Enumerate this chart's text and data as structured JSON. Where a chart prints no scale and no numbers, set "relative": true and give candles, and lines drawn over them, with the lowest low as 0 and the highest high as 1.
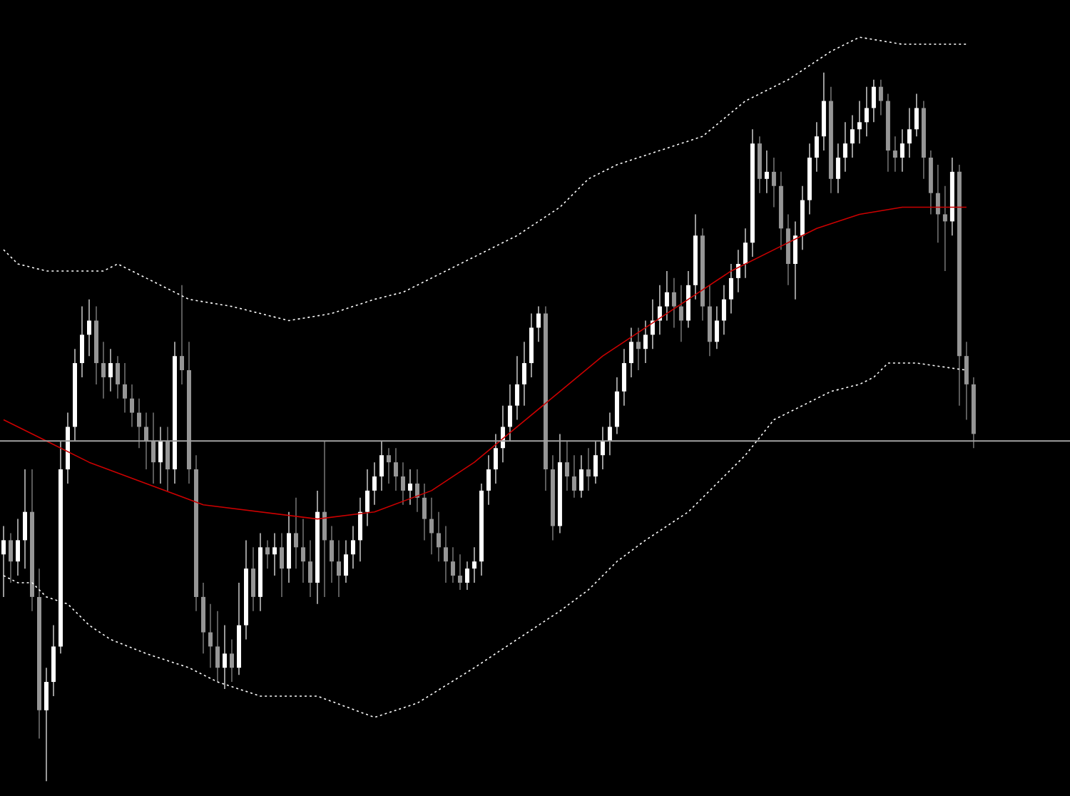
{
  "chart_data": {
    "type": "candlestick",
    "relative": true,
    "categories": [
      null,
      null,
      null,
      null,
      null,
      null,
      null,
      null,
      null,
      null,
      null,
      null,
      null,
      null,
      null,
      null,
      null,
      null,
      null,
      null,
      null,
      null,
      null,
      null,
      null,
      null,
      null,
      null,
      null,
      null,
      null,
      null,
      null,
      null,
      null,
      null,
      null,
      null,
      null,
      null,
      null,
      null,
      null,
      null,
      null,
      null,
      null,
      null,
      null,
      null,
      null,
      null,
      null,
      null,
      null,
      null,
      null,
      null,
      null,
      null,
      null,
      null,
      null,
      null,
      null,
      null,
      null,
      null,
      null,
      null,
      null,
      null,
      null,
      null,
      null,
      null,
      null,
      null,
      null,
      null,
      null,
      null,
      null,
      null,
      null,
      null,
      null,
      null,
      null,
      null,
      null,
      null,
      null,
      null,
      null,
      null,
      null,
      null,
      null,
      null,
      null,
      null,
      null,
      null,
      null,
      null,
      null,
      null,
      null,
      null,
      null,
      null,
      null,
      null,
      null,
      null,
      null,
      null,
      null,
      null,
      null,
      null,
      null,
      null,
      null,
      null,
      null,
      null,
      null,
      null,
      null,
      null,
      null,
      null,
      null,
      null,
      null
    ],
    "ohlc": [
      [
        0.32,
        0.36,
        0.26,
        0.34
      ],
      [
        0.34,
        0.35,
        0.28,
        0.31
      ],
      [
        0.31,
        0.37,
        0.29,
        0.34
      ],
      [
        0.34,
        0.44,
        0.3,
        0.38
      ],
      [
        0.38,
        0.44,
        0.24,
        0.26
      ],
      [
        0.26,
        0.3,
        0.06,
        0.1
      ],
      [
        0.1,
        0.16,
        0,
        0.14
      ],
      [
        0.14,
        0.22,
        0.12,
        0.19
      ],
      [
        0.19,
        0.48,
        0.18,
        0.44
      ],
      [
        0.44,
        0.52,
        0.42,
        0.5
      ],
      [
        0.5,
        0.61,
        0.48,
        0.59
      ],
      [
        0.59,
        0.67,
        0.57,
        0.63
      ],
      [
        0.63,
        0.68,
        0.6,
        0.65
      ],
      [
        0.65,
        0.67,
        0.56,
        0.59
      ],
      [
        0.59,
        0.62,
        0.54,
        0.57
      ],
      [
        0.57,
        0.61,
        0.55,
        0.59
      ],
      [
        0.59,
        0.6,
        0.54,
        0.56
      ],
      [
        0.56,
        0.59,
        0.52,
        0.54
      ],
      [
        0.54,
        0.56,
        0.5,
        0.52
      ],
      [
        0.52,
        0.54,
        0.47,
        0.5
      ],
      [
        0.5,
        0.52,
        0.44,
        0.48
      ],
      [
        0.48,
        0.52,
        0.42,
        0.45
      ],
      [
        0.45,
        0.5,
        0.42,
        0.48
      ],
      [
        0.48,
        0.5,
        0.41,
        0.44
      ],
      [
        0.44,
        0.62,
        0.42,
        0.6
      ],
      [
        0.6,
        0.7,
        0.56,
        0.58
      ],
      [
        0.58,
        0.62,
        0.42,
        0.44
      ],
      [
        0.44,
        0.46,
        0.24,
        0.26
      ],
      [
        0.26,
        0.28,
        0.18,
        0.21
      ],
      [
        0.21,
        0.25,
        0.16,
        0.19
      ],
      [
        0.19,
        0.24,
        0.14,
        0.16
      ],
      [
        0.16,
        0.22,
        0.13,
        0.18
      ],
      [
        0.18,
        0.2,
        0.14,
        0.16
      ],
      [
        0.16,
        0.28,
        0.15,
        0.22
      ],
      [
        0.22,
        0.34,
        0.2,
        0.3
      ],
      [
        0.3,
        0.33,
        0.24,
        0.26
      ],
      [
        0.26,
        0.35,
        0.24,
        0.33
      ],
      [
        0.33,
        0.34,
        0.3,
        0.32
      ],
      [
        0.32,
        0.35,
        0.29,
        0.33
      ],
      [
        0.33,
        0.35,
        0.26,
        0.3
      ],
      [
        0.3,
        0.38,
        0.28,
        0.35
      ],
      [
        0.35,
        0.4,
        0.3,
        0.33
      ],
      [
        0.33,
        0.37,
        0.28,
        0.31
      ],
      [
        0.31,
        0.34,
        0.26,
        0.28
      ],
      [
        0.28,
        0.41,
        0.25,
        0.38
      ],
      [
        0.38,
        0.48,
        0.26,
        0.34
      ],
      [
        0.34,
        0.36,
        0.28,
        0.31
      ],
      [
        0.31,
        0.34,
        0.26,
        0.29
      ],
      [
        0.29,
        0.34,
        0.28,
        0.32
      ],
      [
        0.32,
        0.36,
        0.3,
        0.34
      ],
      [
        0.34,
        0.4,
        0.31,
        0.38
      ],
      [
        0.38,
        0.44,
        0.36,
        0.41
      ],
      [
        0.41,
        0.45,
        0.39,
        0.43
      ],
      [
        0.43,
        0.48,
        0.41,
        0.46
      ],
      [
        0.46,
        0.47,
        0.42,
        0.45
      ],
      [
        0.45,
        0.47,
        0.41,
        0.43
      ],
      [
        0.43,
        0.45,
        0.39,
        0.41
      ],
      [
        0.41,
        0.44,
        0.39,
        0.42
      ],
      [
        0.42,
        0.44,
        0.38,
        0.4
      ],
      [
        0.4,
        0.42,
        0.34,
        0.37
      ],
      [
        0.37,
        0.4,
        0.32,
        0.35
      ],
      [
        0.35,
        0.38,
        0.31,
        0.33
      ],
      [
        0.33,
        0.36,
        0.28,
        0.31
      ],
      [
        0.31,
        0.33,
        0.28,
        0.29
      ],
      [
        0.29,
        0.32,
        0.27,
        0.28
      ],
      [
        0.28,
        0.31,
        0.27,
        0.3
      ],
      [
        0.3,
        0.33,
        0.28,
        0.31
      ],
      [
        0.31,
        0.42,
        0.29,
        0.41
      ],
      [
        0.41,
        0.46,
        0.39,
        0.44
      ],
      [
        0.44,
        0.49,
        0.42,
        0.47
      ],
      [
        0.47,
        0.53,
        0.45,
        0.5
      ],
      [
        0.5,
        0.56,
        0.48,
        0.53
      ],
      [
        0.53,
        0.6,
        0.51,
        0.56
      ],
      [
        0.56,
        0.62,
        0.53,
        0.59
      ],
      [
        0.59,
        0.66,
        0.57,
        0.64
      ],
      [
        0.64,
        0.67,
        0.62,
        0.66
      ],
      [
        0.66,
        0.67,
        0.41,
        0.44
      ],
      [
        0.44,
        0.46,
        0.34,
        0.36
      ],
      [
        0.36,
        0.49,
        0.35,
        0.45
      ],
      [
        0.45,
        0.48,
        0.41,
        0.43
      ],
      [
        0.43,
        0.46,
        0.4,
        0.41
      ],
      [
        0.41,
        0.46,
        0.4,
        0.44
      ],
      [
        0.44,
        0.47,
        0.41,
        0.43
      ],
      [
        0.43,
        0.48,
        0.42,
        0.46
      ],
      [
        0.46,
        0.5,
        0.44,
        0.48
      ],
      [
        0.48,
        0.52,
        0.46,
        0.5
      ],
      [
        0.5,
        0.57,
        0.49,
        0.55
      ],
      [
        0.55,
        0.61,
        0.53,
        0.59
      ],
      [
        0.59,
        0.64,
        0.57,
        0.62
      ],
      [
        0.62,
        0.64,
        0.58,
        0.61
      ],
      [
        0.61,
        0.65,
        0.59,
        0.63
      ],
      [
        0.63,
        0.68,
        0.61,
        0.65
      ],
      [
        0.65,
        0.7,
        0.63,
        0.67
      ],
      [
        0.67,
        0.72,
        0.65,
        0.69
      ],
      [
        0.69,
        0.71,
        0.64,
        0.67
      ],
      [
        0.67,
        0.7,
        0.62,
        0.65
      ],
      [
        0.65,
        0.72,
        0.64,
        0.7
      ],
      [
        0.7,
        0.8,
        0.68,
        0.77
      ],
      [
        0.77,
        0.78,
        0.65,
        0.67
      ],
      [
        0.67,
        0.7,
        0.6,
        0.62
      ],
      [
        0.62,
        0.67,
        0.61,
        0.65
      ],
      [
        0.65,
        0.7,
        0.63,
        0.68
      ],
      [
        0.68,
        0.73,
        0.66,
        0.71
      ],
      [
        0.71,
        0.75,
        0.69,
        0.73
      ],
      [
        0.73,
        0.78,
        0.71,
        0.76
      ],
      [
        0.76,
        0.92,
        0.74,
        0.9
      ],
      [
        0.9,
        0.91,
        0.83,
        0.85
      ],
      [
        0.85,
        0.89,
        0.83,
        0.86
      ],
      [
        0.86,
        0.88,
        0.81,
        0.84
      ],
      [
        0.84,
        0.86,
        0.75,
        0.78
      ],
      [
        0.78,
        0.8,
        0.7,
        0.73
      ],
      [
        0.73,
        0.79,
        0.68,
        0.77
      ],
      [
        0.77,
        0.84,
        0.75,
        0.82
      ],
      [
        0.82,
        0.9,
        0.8,
        0.88
      ],
      [
        0.88,
        0.93,
        0.86,
        0.91
      ],
      [
        0.91,
        1,
        0.89,
        0.96
      ],
      [
        0.96,
        0.98,
        0.83,
        0.85
      ],
      [
        0.85,
        0.9,
        0.83,
        0.88
      ],
      [
        0.88,
        0.93,
        0.86,
        0.9
      ],
      [
        0.9,
        0.94,
        0.88,
        0.92
      ],
      [
        0.92,
        0.96,
        0.9,
        0.93
      ],
      [
        0.93,
        0.98,
        0.91,
        0.95
      ],
      [
        0.95,
        0.99,
        0.93,
        0.98
      ],
      [
        0.98,
        0.99,
        0.94,
        0.96
      ],
      [
        0.96,
        0.97,
        0.86,
        0.89
      ],
      [
        0.89,
        0.91,
        0.86,
        0.88
      ],
      [
        0.88,
        0.92,
        0.86,
        0.9
      ],
      [
        0.9,
        0.95,
        0.88,
        0.92
      ],
      [
        0.92,
        0.97,
        0.91,
        0.95
      ],
      [
        0.95,
        0.96,
        0.85,
        0.88
      ],
      [
        0.88,
        0.89,
        0.8,
        0.83
      ],
      [
        0.83,
        0.87,
        0.76,
        0.8
      ],
      [
        0.8,
        0.84,
        0.72,
        0.79
      ],
      [
        0.79,
        0.88,
        0.77,
        0.86
      ],
      [
        0.86,
        0.87,
        0.53,
        0.6
      ],
      [
        0.6,
        0.62,
        0.51,
        0.56
      ],
      [
        0.56,
        0.57,
        0.47,
        0.49
      ]
    ],
    "series": [
      {
        "type": "line",
        "color": "#cc0000",
        "line_style": "solid",
        "values": [
          0.51,
          null,
          null,
          null,
          null,
          null,
          0.48,
          null,
          null,
          null,
          null,
          null,
          0.45,
          null,
          null,
          null,
          null,
          null,
          null,
          null,
          0.42,
          null,
          null,
          null,
          null,
          null,
          null,
          null,
          0.39,
          null,
          null,
          null,
          null,
          null,
          null,
          null,
          0.38,
          null,
          null,
          null,
          null,
          null,
          null,
          null,
          0.37,
          null,
          null,
          null,
          null,
          null,
          null,
          null,
          0.38,
          null,
          null,
          null,
          null,
          null,
          null,
          null,
          0.41,
          null,
          null,
          null,
          null,
          null,
          0.45,
          null,
          null,
          null,
          null,
          null,
          0.5,
          null,
          null,
          null,
          null,
          null,
          0.55,
          null,
          null,
          null,
          null,
          null,
          0.6,
          null,
          null,
          null,
          null,
          null,
          0.64,
          null,
          null,
          null,
          null,
          null,
          0.68,
          null,
          null,
          null,
          null,
          null,
          0.72,
          null,
          null,
          null,
          null,
          null,
          0.75,
          null,
          null,
          null,
          null,
          null,
          0.78,
          null,
          null,
          null,
          null,
          null,
          0.8,
          null,
          null,
          null,
          null,
          null,
          0.81,
          null,
          null,
          null,
          null,
          null,
          0.81,
          null,
          null,
          0.81,
          null
        ]
      },
      {
        "type": "line",
        "color": "#ffffff",
        "line_style": "dotted",
        "values": [
          0.75,
          null,
          0.73,
          null,
          null,
          null,
          0.72,
          null,
          null,
          null,
          0.72,
          null,
          null,
          null,
          0.72,
          null,
          0.73,
          null,
          null,
          null,
          0.71,
          null,
          null,
          null,
          null,
          null,
          0.68,
          null,
          null,
          null,
          null,
          null,
          0.67,
          null,
          null,
          null,
          null,
          null,
          null,
          null,
          0.65,
          null,
          null,
          null,
          null,
          null,
          0.66,
          null,
          null,
          null,
          null,
          null,
          0.68,
          null,
          null,
          null,
          0.69,
          null,
          null,
          null,
          0.71,
          null,
          null,
          null,
          null,
          null,
          0.74,
          null,
          null,
          null,
          null,
          null,
          0.77,
          null,
          null,
          null,
          null,
          null,
          0.81,
          null,
          null,
          null,
          0.85,
          null,
          null,
          null,
          0.87,
          null,
          null,
          null,
          null,
          null,
          0.89,
          null,
          null,
          null,
          null,
          null,
          0.91,
          null,
          null,
          null,
          null,
          null,
          0.96,
          null,
          null,
          null,
          null,
          null,
          0.99,
          null,
          null,
          null,
          null,
          null,
          1.03,
          null,
          null,
          null,
          1.05,
          null,
          null,
          null,
          null,
          null,
          1.04,
          null,
          null,
          null,
          null,
          null,
          null,
          null,
          null,
          1.04,
          null
        ]
      },
      {
        "type": "line",
        "color": "#ffffff",
        "line_style": "dotted",
        "values": [
          0.29,
          null,
          0.28,
          null,
          0.28,
          null,
          0.26,
          null,
          null,
          0.25,
          null,
          null,
          0.22,
          null,
          null,
          0.2,
          null,
          null,
          null,
          null,
          0.18,
          null,
          null,
          null,
          null,
          null,
          0.16,
          null,
          null,
          null,
          0.14,
          null,
          null,
          null,
          null,
          null,
          0.12,
          null,
          null,
          null,
          null,
          null,
          null,
          null,
          0.12,
          null,
          null,
          null,
          null,
          null,
          null,
          null,
          0.09,
          null,
          null,
          null,
          null,
          null,
          0.11,
          null,
          null,
          null,
          null,
          null,
          null,
          null,
          0.16,
          null,
          null,
          null,
          null,
          null,
          0.2,
          null,
          null,
          null,
          null,
          null,
          0.24,
          null,
          null,
          null,
          0.27,
          null,
          null,
          null,
          0.31,
          null,
          null,
          null,
          0.34,
          null,
          null,
          null,
          null,
          null,
          0.38,
          null,
          null,
          null,
          0.42,
          null,
          null,
          null,
          0.46,
          null,
          null,
          null,
          0.51,
          null,
          null,
          null,
          0.53,
          null,
          null,
          null,
          0.55,
          null,
          null,
          null,
          0.56,
          null,
          0.57,
          null,
          0.59,
          null,
          null,
          null,
          0.59,
          null,
          null,
          null,
          null,
          null,
          null,
          0.58,
          null
        ]
      }
    ],
    "ref_lines": [
      {
        "axis": "y",
        "value": 0.48,
        "color": "#a0a0a0"
      }
    ]
  }
}
